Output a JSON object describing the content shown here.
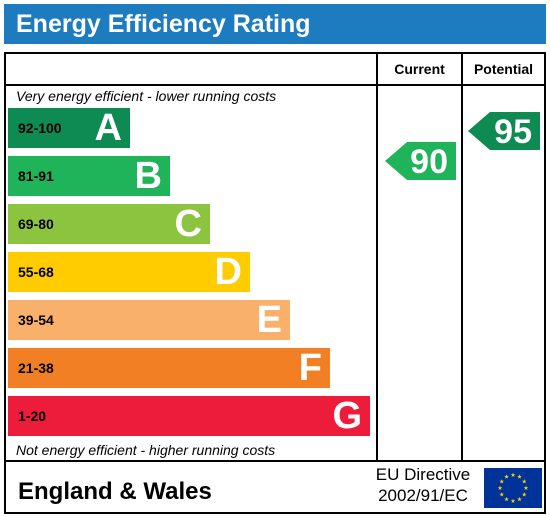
{
  "title": "Energy Efficiency Rating",
  "columns": {
    "current": "Current",
    "potential": "Potential"
  },
  "notes": {
    "top": "Very energy efficient - lower running costs",
    "bottom": "Not energy efficient - higher running costs"
  },
  "bands": [
    {
      "range": "92-100",
      "letter": "A",
      "color": "#0e8a53"
    },
    {
      "range": "81-91",
      "letter": "B",
      "color": "#1fb35a"
    },
    {
      "range": "69-80",
      "letter": "C",
      "color": "#8cc43f"
    },
    {
      "range": "55-68",
      "letter": "D",
      "color": "#ffcc00"
    },
    {
      "range": "39-54",
      "letter": "E",
      "color": "#f9b06a"
    },
    {
      "range": "21-38",
      "letter": "F",
      "color": "#f27f23"
    },
    {
      "range": "1-20",
      "letter": "G",
      "color": "#ee1c3b"
    }
  ],
  "ratings": {
    "current": {
      "value": "90",
      "color": "#1fb35a"
    },
    "potential": {
      "value": "95",
      "color": "#0e8a53"
    }
  },
  "footer": {
    "region": "England & Wales",
    "directive_line1": "EU Directive",
    "directive_line2": "2002/91/EC"
  },
  "flag": {
    "icon": "eu-flag-icon",
    "background": "#003399",
    "stars": "#ffcc00"
  }
}
